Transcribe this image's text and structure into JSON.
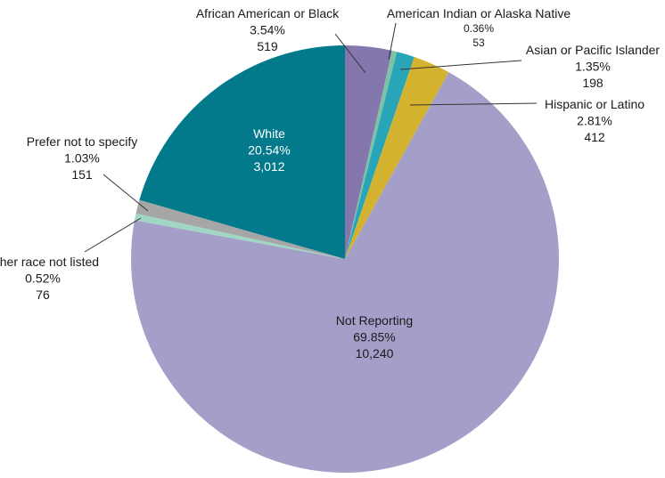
{
  "chart_data": {
    "type": "pie",
    "slices": [
      {
        "label": "African American or Black",
        "percent": "3.54%",
        "count": "519",
        "value": 519,
        "color": "#8477ad"
      },
      {
        "label": "American Indian or Alaska Native",
        "percent": "0.36%",
        "count": "53",
        "value": 53,
        "color": "#7cc3a6"
      },
      {
        "label": "Asian or Pacific Islander",
        "percent": "1.35%",
        "count": "198",
        "value": 198,
        "color": "#2aa5b8"
      },
      {
        "label": "Hispanic or Latino",
        "percent": "2.81%",
        "count": "412",
        "value": 412,
        "color": "#d3b22f"
      },
      {
        "label": "Not Reporting",
        "percent": "69.85%",
        "count": "10,240",
        "value": 10240,
        "color": "#a49fc9"
      },
      {
        "label": "Other race not listed",
        "percent": "0.52%",
        "count": "76",
        "value": 76,
        "color": "#9fd6c4"
      },
      {
        "label": "Prefer not to specify",
        "percent": "1.03%",
        "count": "151",
        "value": 151,
        "color": "#a6a6a6"
      },
      {
        "label": "White",
        "percent": "20.54%",
        "count": "3,012",
        "value": 3012,
        "color": "#037a8c"
      }
    ]
  }
}
